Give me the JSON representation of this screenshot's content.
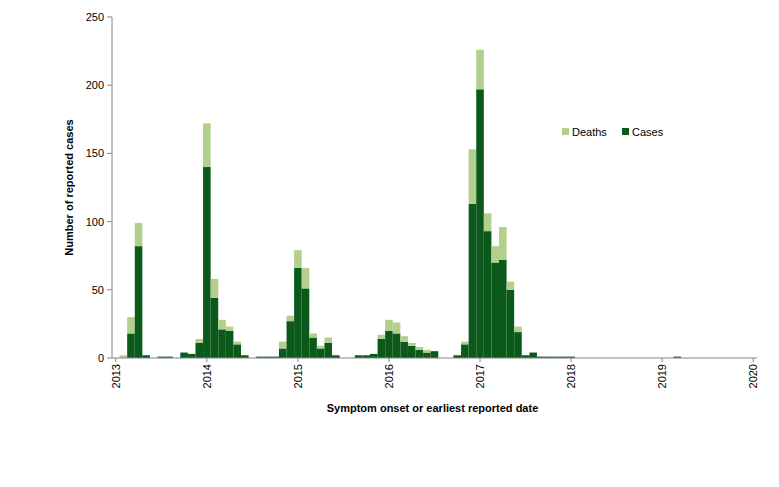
{
  "chart_data": {
    "type": "bar",
    "stacked": true,
    "x_label": "Symptom onset or earliest reported date",
    "y_label": "Number of reported cases",
    "categories": [
      "2013",
      null,
      null,
      null,
      null,
      null,
      null,
      null,
      null,
      null,
      null,
      null,
      "2014",
      null,
      null,
      null,
      null,
      null,
      null,
      null,
      null,
      null,
      null,
      null,
      "2015",
      null,
      null,
      null,
      null,
      null,
      null,
      null,
      null,
      null,
      null,
      null,
      "2016",
      null,
      null,
      null,
      null,
      null,
      null,
      null,
      null,
      null,
      null,
      null,
      "2017",
      null,
      null,
      null,
      null,
      null,
      null,
      null,
      null,
      null,
      null,
      null,
      "2018",
      null,
      null,
      null,
      null,
      null,
      null,
      null,
      null,
      null,
      null,
      null,
      "2019",
      null,
      null,
      null,
      null,
      null,
      null,
      null,
      null,
      null,
      null,
      null,
      "2020"
    ],
    "series": [
      {
        "name": "Cases",
        "color": "#0b5a1c",
        "values": [
          0,
          0,
          18,
          82,
          2,
          0,
          1,
          1,
          0,
          4,
          3,
          11,
          140,
          44,
          21,
          20,
          10,
          2,
          0,
          1,
          1,
          1,
          7,
          27,
          66,
          51,
          15,
          7,
          11,
          2,
          0,
          0,
          2,
          2,
          3,
          14,
          20,
          18,
          12,
          9,
          6,
          4,
          5,
          0,
          0,
          2,
          10,
          113,
          197,
          93,
          70,
          72,
          50,
          19,
          2,
          4,
          1,
          1,
          1,
          1,
          1,
          0,
          0,
          0,
          0,
          0,
          0,
          0,
          0,
          0,
          0,
          0,
          0,
          0,
          1,
          0,
          0,
          0,
          0,
          0,
          0,
          0,
          0,
          0,
          0
        ]
      },
      {
        "name": "Deaths",
        "color": "#b2cf8b",
        "values": [
          0,
          2,
          12,
          17,
          0,
          0,
          0,
          0,
          0,
          0,
          0,
          3,
          32,
          14,
          7,
          3,
          2,
          0,
          0,
          0,
          0,
          0,
          5,
          4,
          13,
          15,
          3,
          2,
          4,
          0,
          0,
          0,
          0,
          0,
          0,
          3,
          8,
          8,
          4,
          2,
          2,
          2,
          0,
          0,
          0,
          0,
          2,
          40,
          29,
          13,
          12,
          24,
          6,
          4,
          0,
          0,
          0,
          0,
          0,
          0,
          0,
          0,
          0,
          0,
          0,
          0,
          0,
          0,
          0,
          0,
          0,
          0,
          0,
          0,
          0,
          0,
          0,
          0,
          0,
          0,
          0,
          0,
          0,
          0,
          0
        ]
      }
    ],
    "ylim": [
      0,
      250
    ],
    "yticks": [
      0,
      50,
      100,
      150,
      200,
      250
    ],
    "grid": false,
    "legend": "top-right"
  }
}
